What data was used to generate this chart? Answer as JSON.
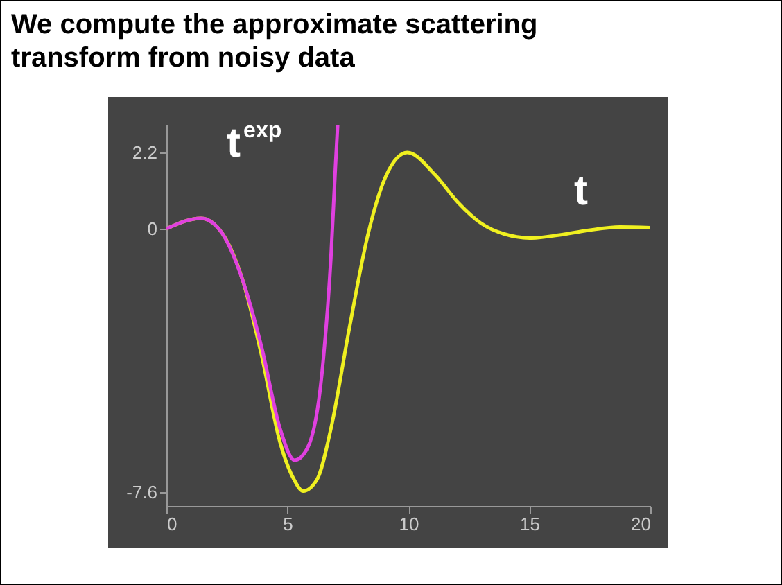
{
  "chart_data": {
    "type": "line",
    "title": "We compute the approximate scattering transform from noisy data",
    "xlim": [
      0,
      20
    ],
    "xticks": [
      0,
      5,
      10,
      15,
      20
    ],
    "ylim": [
      -8,
      3
    ],
    "yticks": [
      2.2,
      0,
      -7.6
    ],
    "series": [
      {
        "name": "t",
        "color": "#f0f020",
        "x": [
          0,
          1.43,
          2.2,
          3.16,
          3.93,
          4.7,
          5.27,
          5.65,
          6.23,
          6.8,
          7.57,
          8.33,
          9.1,
          9.96,
          11.1,
          12.05,
          13.0,
          13.96,
          15.1,
          16.25,
          17.4,
          18.74,
          20
        ],
        "values": [
          0,
          0.3,
          -0.03,
          -1.5,
          -3.64,
          -6.17,
          -7.23,
          -7.57,
          -7.23,
          -5.77,
          -2.84,
          -0.17,
          1.56,
          2.2,
          1.56,
          0.76,
          0.16,
          -0.15,
          -0.27,
          -0.18,
          -0.05,
          0.05,
          0.03
        ]
      },
      {
        "name": "t$^{exp}$",
        "color": "#e040e0",
        "x": [
          0,
          1.43,
          2.2,
          3.16,
          3.93,
          4.7,
          5.3,
          5.85,
          6.43,
          6.8,
          6.99,
          7.08
        ],
        "values": [
          0,
          0.3,
          -0.03,
          -1.5,
          -3.4,
          -5.77,
          -6.68,
          -6.3,
          -4.17,
          -0.84,
          1.83,
          3.0
        ]
      }
    ]
  }
}
